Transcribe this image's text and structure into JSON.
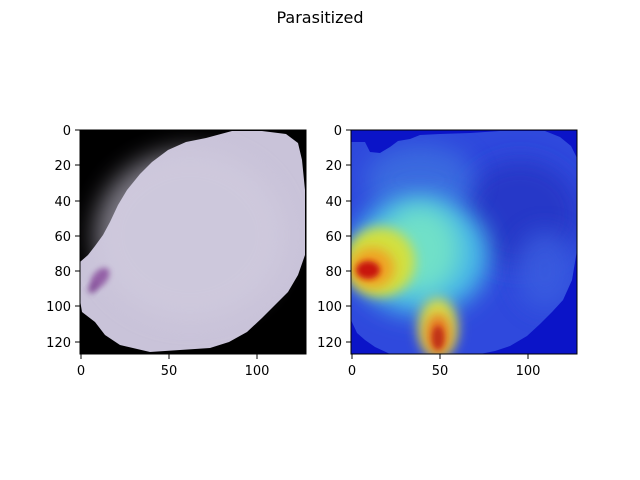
{
  "figure": {
    "title": "Parasitized"
  },
  "panels": [
    {
      "name": "original-cell-image",
      "xticks": [
        "0",
        "50",
        "100"
      ],
      "yticks": [
        "0",
        "20",
        "40",
        "60",
        "80",
        "100",
        "120"
      ]
    },
    {
      "name": "gradcam-heatmap-overlay",
      "xticks": [
        "0",
        "50",
        "100"
      ],
      "yticks": [
        "0",
        "20",
        "40",
        "60",
        "80",
        "100",
        "120"
      ]
    }
  ],
  "colors": {
    "background": "#000000",
    "cell": "#c9c3d9",
    "stain": "#8a4f9e",
    "heat_low": "#0b14c8",
    "heat_mid": "#39d9c8",
    "heat_high": "#c8180f"
  }
}
